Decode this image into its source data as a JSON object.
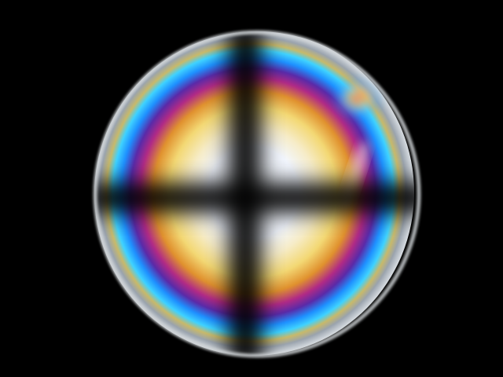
{
  "image": {
    "subject": "conoscopic-interference-figure",
    "background_color": "#000000",
    "palette": {
      "rim": "#cfd3d6",
      "blue": "#1e90ff",
      "cyan": "#3fd2ff",
      "magenta": "#b02a86",
      "violet": "#5a2aa8",
      "orange": "#e0912e",
      "yellow": "#f3d874",
      "white": "#f6faff",
      "isogyre": "#050505"
    }
  }
}
